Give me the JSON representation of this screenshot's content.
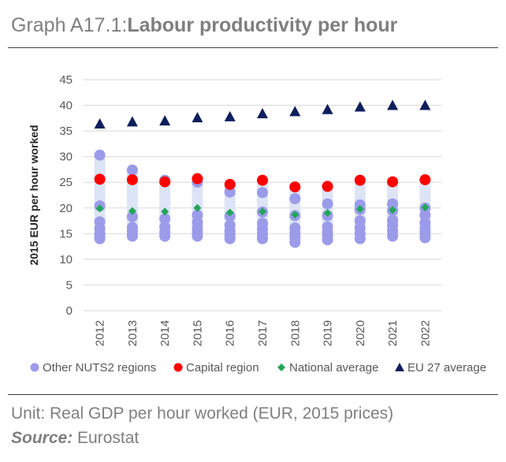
{
  "header": {
    "title_prefix": "Graph A17.1:",
    "title_main": "Labour productivity per hour"
  },
  "footer": {
    "unit": "Unit: Real GDP per hour worked (EUR, 2015 prices)",
    "source_label": "Source:",
    "source_value": "Eurostat"
  },
  "colors": {
    "other": "#9b9bea",
    "capital": "#ff0000",
    "national": "#22a65a",
    "eu": "#0d1e5c",
    "range_band": "#dde4f5",
    "grid": "#d9d9d9"
  },
  "chart_data": {
    "type": "scatter",
    "title": "Labour productivity per hour",
    "xlabel": "",
    "ylabel": "2015 EUR per hour worked",
    "ylim": [
      0,
      45
    ],
    "yticks": [
      0,
      5,
      10,
      15,
      20,
      25,
      30,
      35,
      40,
      45
    ],
    "grid": true,
    "legend_position": "bottom",
    "categories": [
      "2012",
      "2013",
      "2014",
      "2015",
      "2016",
      "2017",
      "2018",
      "2019",
      "2020",
      "2021",
      "2022"
    ],
    "series": [
      {
        "name": "Other NUTS2 regions",
        "marker": "circle",
        "values": [
          [
            30.3,
            20.4,
            17.3,
            16.0,
            15.0,
            14.5,
            14.0
          ],
          [
            27.4,
            18.3,
            16.2,
            15.5,
            14.8,
            14.5
          ],
          [
            25.4,
            17.9,
            16.3,
            15.2,
            14.5
          ],
          [
            25.0,
            18.6,
            17.2,
            16.1,
            15.2,
            14.5
          ],
          [
            23.1,
            18.4,
            16.6,
            15.5,
            14.8,
            14.0
          ],
          [
            23.0,
            19.2,
            17.0,
            15.9,
            15.0,
            14.0
          ],
          [
            21.8,
            18.5,
            16.1,
            15.1,
            14.3,
            13.3
          ],
          [
            20.8,
            18.5,
            16.3,
            15.2,
            14.5,
            13.8
          ],
          [
            20.6,
            19.7,
            17.5,
            16.1,
            15.0,
            14.0
          ],
          [
            20.8,
            19.5,
            17.6,
            16.6,
            15.5,
            14.5
          ],
          [
            20.0,
            18.6,
            17.1,
            16.0,
            15.1,
            14.2
          ]
        ]
      },
      {
        "name": "Capital region",
        "marker": "circle",
        "values": [
          25.6,
          25.5,
          25.1,
          25.7,
          24.6,
          25.4,
          24.1,
          24.2,
          25.4,
          25.1,
          25.5
        ]
      },
      {
        "name": "National average",
        "marker": "diamond",
        "values": [
          19.9,
          19.4,
          19.3,
          20.0,
          19.1,
          19.3,
          18.7,
          19.0,
          19.8,
          19.6,
          20.1
        ]
      },
      {
        "name": "EU 27 average",
        "marker": "triangle",
        "values": [
          36.4,
          36.8,
          37.0,
          37.6,
          37.8,
          38.4,
          38.8,
          39.2,
          39.7,
          40.0,
          40.0
        ]
      }
    ]
  }
}
